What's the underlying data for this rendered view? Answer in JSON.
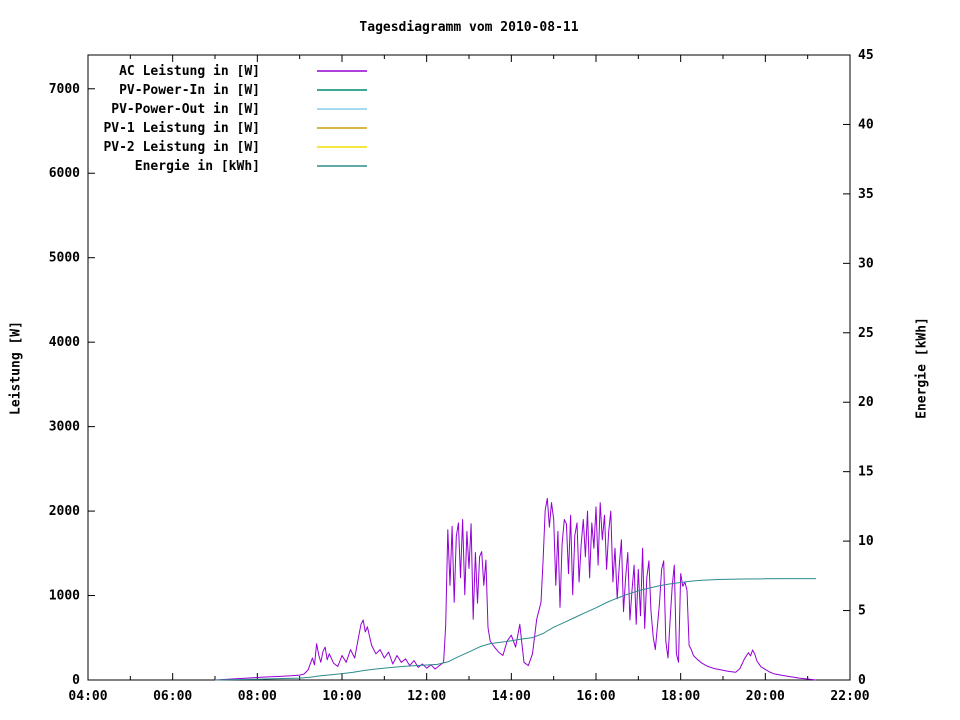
{
  "title": "Tagesdiagramm vom 2010-08-11",
  "axes": {
    "left_label": "Leistung [W]",
    "right_label": "Energie [kWh]",
    "x_ticks": [
      "04:00",
      "06:00",
      "08:00",
      "10:00",
      "12:00",
      "14:00",
      "16:00",
      "18:00",
      "20:00",
      "22:00"
    ],
    "left_ticks": [
      "0",
      "1000",
      "2000",
      "3000",
      "4000",
      "5000",
      "6000",
      "7000"
    ],
    "right_ticks": [
      "0",
      "5",
      "10",
      "15",
      "20",
      "25",
      "30",
      "35",
      "40",
      "45"
    ]
  },
  "chart_data": {
    "type": "line",
    "title": "Tagesdiagramm vom 2010-08-11",
    "xlabel": "",
    "ylabel": "Leistung [W]",
    "y2label": "Energie [kWh]",
    "x_range_hours": [
      4,
      22
    ],
    "y_range_w": [
      0,
      7400
    ],
    "y2_range_kwh": [
      0,
      45
    ],
    "x_major_step_hours": 2,
    "x_minor_step_hours": 1,
    "grid": false,
    "legend_position": "top-left",
    "series": [
      {
        "name": "AC Leistung in [W]",
        "color": "#9400d3",
        "axis": "left",
        "points": [
          [
            7.0,
            0
          ],
          [
            7.2,
            6
          ],
          [
            7.4,
            12
          ],
          [
            7.6,
            18
          ],
          [
            7.8,
            24
          ],
          [
            8.0,
            30
          ],
          [
            8.2,
            35
          ],
          [
            8.4,
            40
          ],
          [
            8.6,
            45
          ],
          [
            8.8,
            50
          ],
          [
            9.0,
            58
          ],
          [
            9.1,
            70
          ],
          [
            9.2,
            120
          ],
          [
            9.3,
            260
          ],
          [
            9.35,
            180
          ],
          [
            9.4,
            430
          ],
          [
            9.45,
            300
          ],
          [
            9.5,
            210
          ],
          [
            9.55,
            340
          ],
          [
            9.6,
            390
          ],
          [
            9.65,
            240
          ],
          [
            9.7,
            310
          ],
          [
            9.8,
            200
          ],
          [
            9.9,
            160
          ],
          [
            10.0,
            290
          ],
          [
            10.1,
            210
          ],
          [
            10.2,
            360
          ],
          [
            10.3,
            260
          ],
          [
            10.4,
            530
          ],
          [
            10.45,
            660
          ],
          [
            10.5,
            710
          ],
          [
            10.55,
            570
          ],
          [
            10.6,
            630
          ],
          [
            10.7,
            410
          ],
          [
            10.8,
            310
          ],
          [
            10.9,
            360
          ],
          [
            11.0,
            260
          ],
          [
            11.1,
            330
          ],
          [
            11.2,
            190
          ],
          [
            11.3,
            290
          ],
          [
            11.4,
            210
          ],
          [
            11.5,
            250
          ],
          [
            11.6,
            170
          ],
          [
            11.7,
            230
          ],
          [
            11.8,
            150
          ],
          [
            11.9,
            190
          ],
          [
            12.0,
            140
          ],
          [
            12.1,
            180
          ],
          [
            12.2,
            130
          ],
          [
            12.3,
            170
          ],
          [
            12.4,
            210
          ],
          [
            12.45,
            650
          ],
          [
            12.5,
            1780
          ],
          [
            12.55,
            1120
          ],
          [
            12.6,
            1820
          ],
          [
            12.65,
            920
          ],
          [
            12.7,
            1700
          ],
          [
            12.75,
            1860
          ],
          [
            12.8,
            1210
          ],
          [
            12.85,
            1900
          ],
          [
            12.9,
            1010
          ],
          [
            12.95,
            1760
          ],
          [
            13.0,
            1320
          ],
          [
            13.05,
            1850
          ],
          [
            13.1,
            720
          ],
          [
            13.15,
            1510
          ],
          [
            13.2,
            910
          ],
          [
            13.25,
            1460
          ],
          [
            13.3,
            1520
          ],
          [
            13.35,
            1120
          ],
          [
            13.4,
            1420
          ],
          [
            13.45,
            620
          ],
          [
            13.5,
            460
          ],
          [
            13.6,
            390
          ],
          [
            13.7,
            330
          ],
          [
            13.8,
            290
          ],
          [
            13.9,
            460
          ],
          [
            14.0,
            530
          ],
          [
            14.1,
            390
          ],
          [
            14.2,
            660
          ],
          [
            14.25,
            430
          ],
          [
            14.3,
            210
          ],
          [
            14.4,
            170
          ],
          [
            14.5,
            310
          ],
          [
            14.6,
            720
          ],
          [
            14.7,
            920
          ],
          [
            14.75,
            1420
          ],
          [
            14.8,
            2010
          ],
          [
            14.85,
            2150
          ],
          [
            14.9,
            1810
          ],
          [
            14.95,
            2100
          ],
          [
            15.0,
            1900
          ],
          [
            15.05,
            1120
          ],
          [
            15.1,
            1760
          ],
          [
            15.15,
            860
          ],
          [
            15.2,
            1610
          ],
          [
            15.25,
            1900
          ],
          [
            15.3,
            1850
          ],
          [
            15.35,
            1260
          ],
          [
            15.4,
            1950
          ],
          [
            15.45,
            1010
          ],
          [
            15.5,
            1710
          ],
          [
            15.55,
            1860
          ],
          [
            15.6,
            1160
          ],
          [
            15.65,
            1610
          ],
          [
            15.7,
            1900
          ],
          [
            15.75,
            1460
          ],
          [
            15.8,
            2000
          ],
          [
            15.85,
            1210
          ],
          [
            15.9,
            1860
          ],
          [
            15.95,
            1560
          ],
          [
            16.0,
            2050
          ],
          [
            16.05,
            1360
          ],
          [
            16.1,
            2100
          ],
          [
            16.15,
            1660
          ],
          [
            16.2,
            1950
          ],
          [
            16.25,
            1310
          ],
          [
            16.3,
            1760
          ],
          [
            16.35,
            2000
          ],
          [
            16.4,
            1160
          ],
          [
            16.45,
            1560
          ],
          [
            16.5,
            960
          ],
          [
            16.55,
            1360
          ],
          [
            16.6,
            1660
          ],
          [
            16.65,
            810
          ],
          [
            16.7,
            1210
          ],
          [
            16.75,
            1510
          ],
          [
            16.8,
            710
          ],
          [
            16.85,
            1060
          ],
          [
            16.9,
            1360
          ],
          [
            16.95,
            660
          ],
          [
            17.0,
            1310
          ],
          [
            17.05,
            760
          ],
          [
            17.1,
            1560
          ],
          [
            17.15,
            610
          ],
          [
            17.2,
            1210
          ],
          [
            17.25,
            1410
          ],
          [
            17.3,
            810
          ],
          [
            17.35,
            510
          ],
          [
            17.4,
            360
          ],
          [
            17.5,
            910
          ],
          [
            17.55,
            1310
          ],
          [
            17.6,
            1410
          ],
          [
            17.65,
            460
          ],
          [
            17.7,
            260
          ],
          [
            17.75,
            710
          ],
          [
            17.8,
            1110
          ],
          [
            17.85,
            1360
          ],
          [
            17.9,
            310
          ],
          [
            17.95,
            210
          ],
          [
            18.0,
            1260
          ],
          [
            18.05,
            1110
          ],
          [
            18.1,
            1160
          ],
          [
            18.15,
            1060
          ],
          [
            18.2,
            410
          ],
          [
            18.25,
            360
          ],
          [
            18.3,
            290
          ],
          [
            18.4,
            240
          ],
          [
            18.5,
            200
          ],
          [
            18.6,
            170
          ],
          [
            18.7,
            150
          ],
          [
            18.8,
            135
          ],
          [
            18.9,
            125
          ],
          [
            19.0,
            115
          ],
          [
            19.1,
            105
          ],
          [
            19.2,
            98
          ],
          [
            19.3,
            92
          ],
          [
            19.4,
            135
          ],
          [
            19.5,
            245
          ],
          [
            19.6,
            325
          ],
          [
            19.65,
            285
          ],
          [
            19.7,
            355
          ],
          [
            19.75,
            305
          ],
          [
            19.8,
            225
          ],
          [
            19.9,
            155
          ],
          [
            20.0,
            125
          ],
          [
            20.1,
            95
          ],
          [
            20.2,
            75
          ],
          [
            20.4,
            55
          ],
          [
            20.6,
            38
          ],
          [
            20.8,
            22
          ],
          [
            21.0,
            12
          ],
          [
            21.1,
            6
          ],
          [
            21.2,
            0
          ]
        ]
      },
      {
        "name": "PV-Power-In in [W]",
        "color": "#008b6f",
        "axis": "left",
        "points": []
      },
      {
        "name": "PV-Power-Out in [W]",
        "color": "#87ceeb",
        "axis": "left",
        "points": []
      },
      {
        "name": "PV-1 Leistung in [W]",
        "color": "#c8a000",
        "axis": "left",
        "points": []
      },
      {
        "name": "PV-2 Leistung in [W]",
        "color": "#f0e000",
        "axis": "left",
        "points": []
      },
      {
        "name": "Energie in [kWh]",
        "color": "#2e8b8b",
        "axis": "right",
        "points": [
          [
            7.0,
            0
          ],
          [
            7.5,
            0.03
          ],
          [
            8.0,
            0.06
          ],
          [
            8.5,
            0.1
          ],
          [
            9.0,
            0.14
          ],
          [
            9.25,
            0.2
          ],
          [
            9.5,
            0.3
          ],
          [
            9.75,
            0.38
          ],
          [
            10.0,
            0.46
          ],
          [
            10.25,
            0.55
          ],
          [
            10.5,
            0.68
          ],
          [
            10.75,
            0.78
          ],
          [
            11.0,
            0.86
          ],
          [
            11.25,
            0.93
          ],
          [
            11.5,
            0.99
          ],
          [
            11.75,
            1.04
          ],
          [
            12.0,
            1.08
          ],
          [
            12.25,
            1.12
          ],
          [
            12.5,
            1.3
          ],
          [
            12.75,
            1.68
          ],
          [
            13.0,
            2.02
          ],
          [
            13.25,
            2.38
          ],
          [
            13.5,
            2.62
          ],
          [
            13.75,
            2.72
          ],
          [
            14.0,
            2.82
          ],
          [
            14.25,
            2.95
          ],
          [
            14.5,
            3.05
          ],
          [
            14.75,
            3.35
          ],
          [
            15.0,
            3.8
          ],
          [
            15.25,
            4.15
          ],
          [
            15.5,
            4.5
          ],
          [
            15.75,
            4.85
          ],
          [
            16.0,
            5.2
          ],
          [
            16.25,
            5.58
          ],
          [
            16.5,
            5.9
          ],
          [
            16.75,
            6.18
          ],
          [
            17.0,
            6.42
          ],
          [
            17.25,
            6.62
          ],
          [
            17.5,
            6.78
          ],
          [
            17.75,
            6.92
          ],
          [
            18.0,
            7.02
          ],
          [
            18.25,
            7.12
          ],
          [
            18.5,
            7.18
          ],
          [
            18.75,
            7.22
          ],
          [
            19.0,
            7.24
          ],
          [
            19.5,
            7.27
          ],
          [
            20.0,
            7.29
          ],
          [
            20.5,
            7.3
          ],
          [
            21.0,
            7.3
          ],
          [
            21.2,
            7.3
          ]
        ]
      }
    ]
  }
}
